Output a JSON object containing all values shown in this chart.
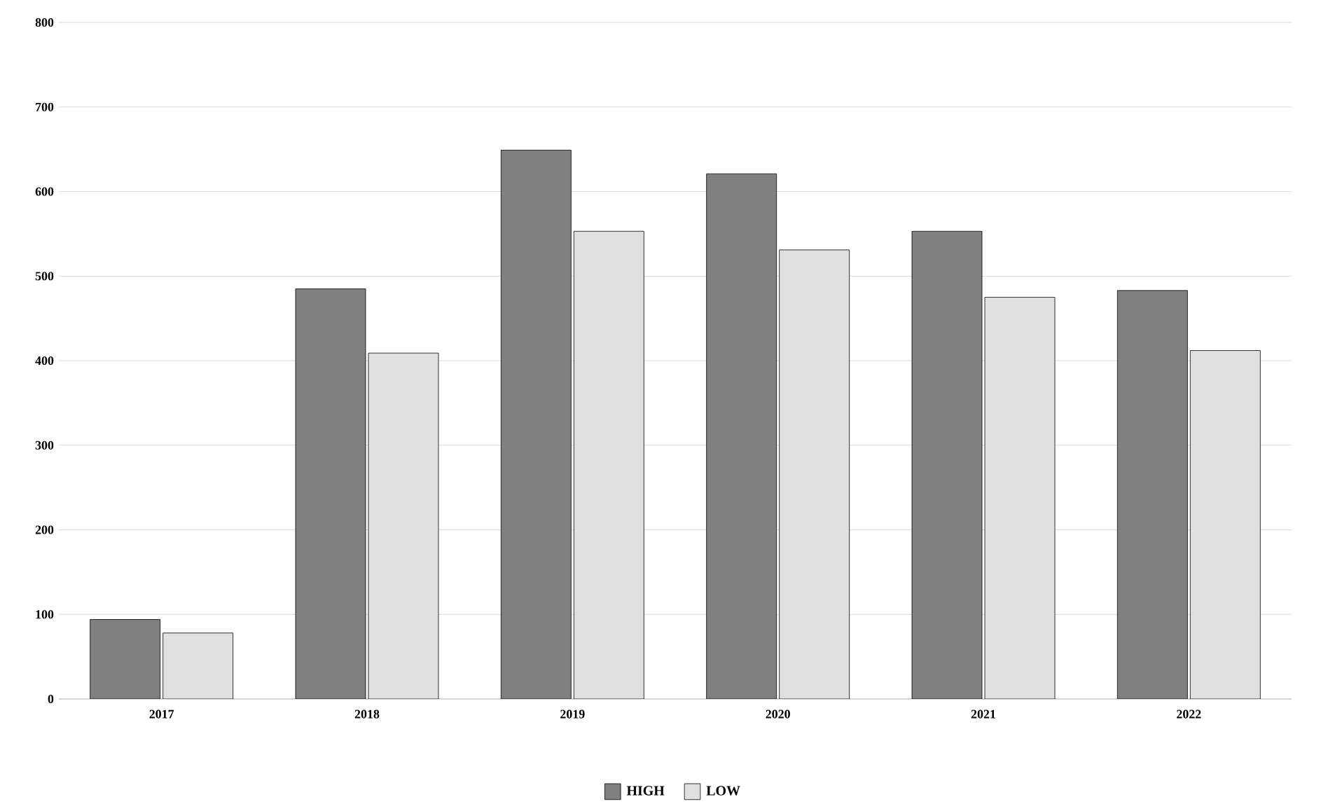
{
  "chart_data": {
    "type": "bar",
    "categories": [
      "2017",
      "2018",
      "2019",
      "2020",
      "2021",
      "2022"
    ],
    "series": [
      {
        "name": "HIGH",
        "color": "#808080",
        "values": [
          94,
          485,
          649,
          621,
          553,
          483
        ]
      },
      {
        "name": "LOW",
        "color": "#e0e0e0",
        "values": [
          78,
          409,
          553,
          531,
          475,
          412
        ]
      }
    ],
    "ylim": [
      0,
      800
    ],
    "yticks": [
      0,
      100,
      200,
      300,
      400,
      500,
      600,
      700,
      800
    ],
    "grid": "y",
    "legend": "bottom"
  }
}
